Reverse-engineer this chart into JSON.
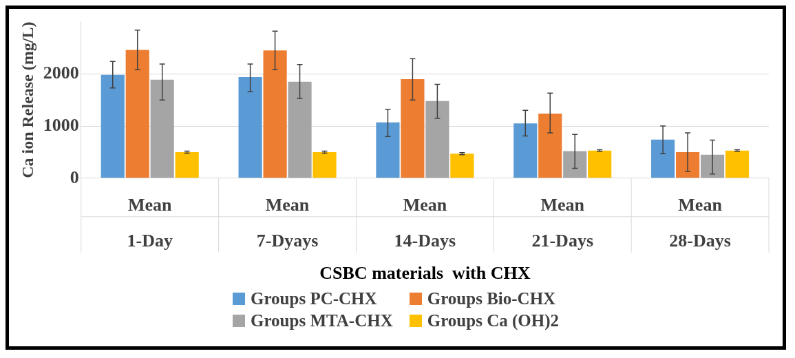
{
  "chart_data": {
    "type": "bar",
    "categories": [
      "Mean\n1-Day",
      "Mean\n7-Dyays",
      "Mean\n14-Days",
      "Mean\n21-Days",
      "Mean\n28-Days"
    ],
    "xlabel": "CSBC materials  with CHX",
    "ylabel": "Ca ion Release (mg/L)",
    "series": [
      {
        "name": "Groups PC-CHX",
        "color": "#5b9bd5",
        "values": [
          1980,
          1940,
          1070,
          1050,
          740
        ],
        "errors": [
          [
            1730,
            2240
          ],
          [
            1660,
            2190
          ],
          [
            800,
            1320
          ],
          [
            810,
            1300
          ],
          [
            470,
            1000
          ]
        ]
      },
      {
        "name": "Groups Bio-CHX",
        "color": "#ed7d31",
        "values": [
          2460,
          2450,
          1900,
          1240,
          500
        ],
        "errors": [
          [
            2080,
            2840
          ],
          [
            2080,
            2820
          ],
          [
            1500,
            2290
          ],
          [
            870,
            1630
          ],
          [
            130,
            870
          ]
        ]
      },
      {
        "name": "Groups MTA-CHX",
        "color": "#a5a5a5",
        "values": [
          1890,
          1850,
          1480,
          520,
          450
        ],
        "errors": [
          [
            1500,
            2190
          ],
          [
            1530,
            2180
          ],
          [
            1150,
            1800
          ],
          [
            190,
            840
          ],
          [
            80,
            730
          ]
        ]
      },
      {
        "name": "Groups Ca (OH)2",
        "color": "#ffc000",
        "values": [
          500,
          500,
          470,
          530,
          530
        ],
        "errors": [
          [
            480,
            520
          ],
          [
            480,
            520
          ],
          [
            450,
            490
          ],
          [
            515,
            545
          ],
          [
            515,
            545
          ]
        ]
      }
    ],
    "ylim": [
      0,
      3000
    ],
    "yticks": [
      0,
      1000,
      2000
    ],
    "grid": "y",
    "legend": "bottom"
  }
}
